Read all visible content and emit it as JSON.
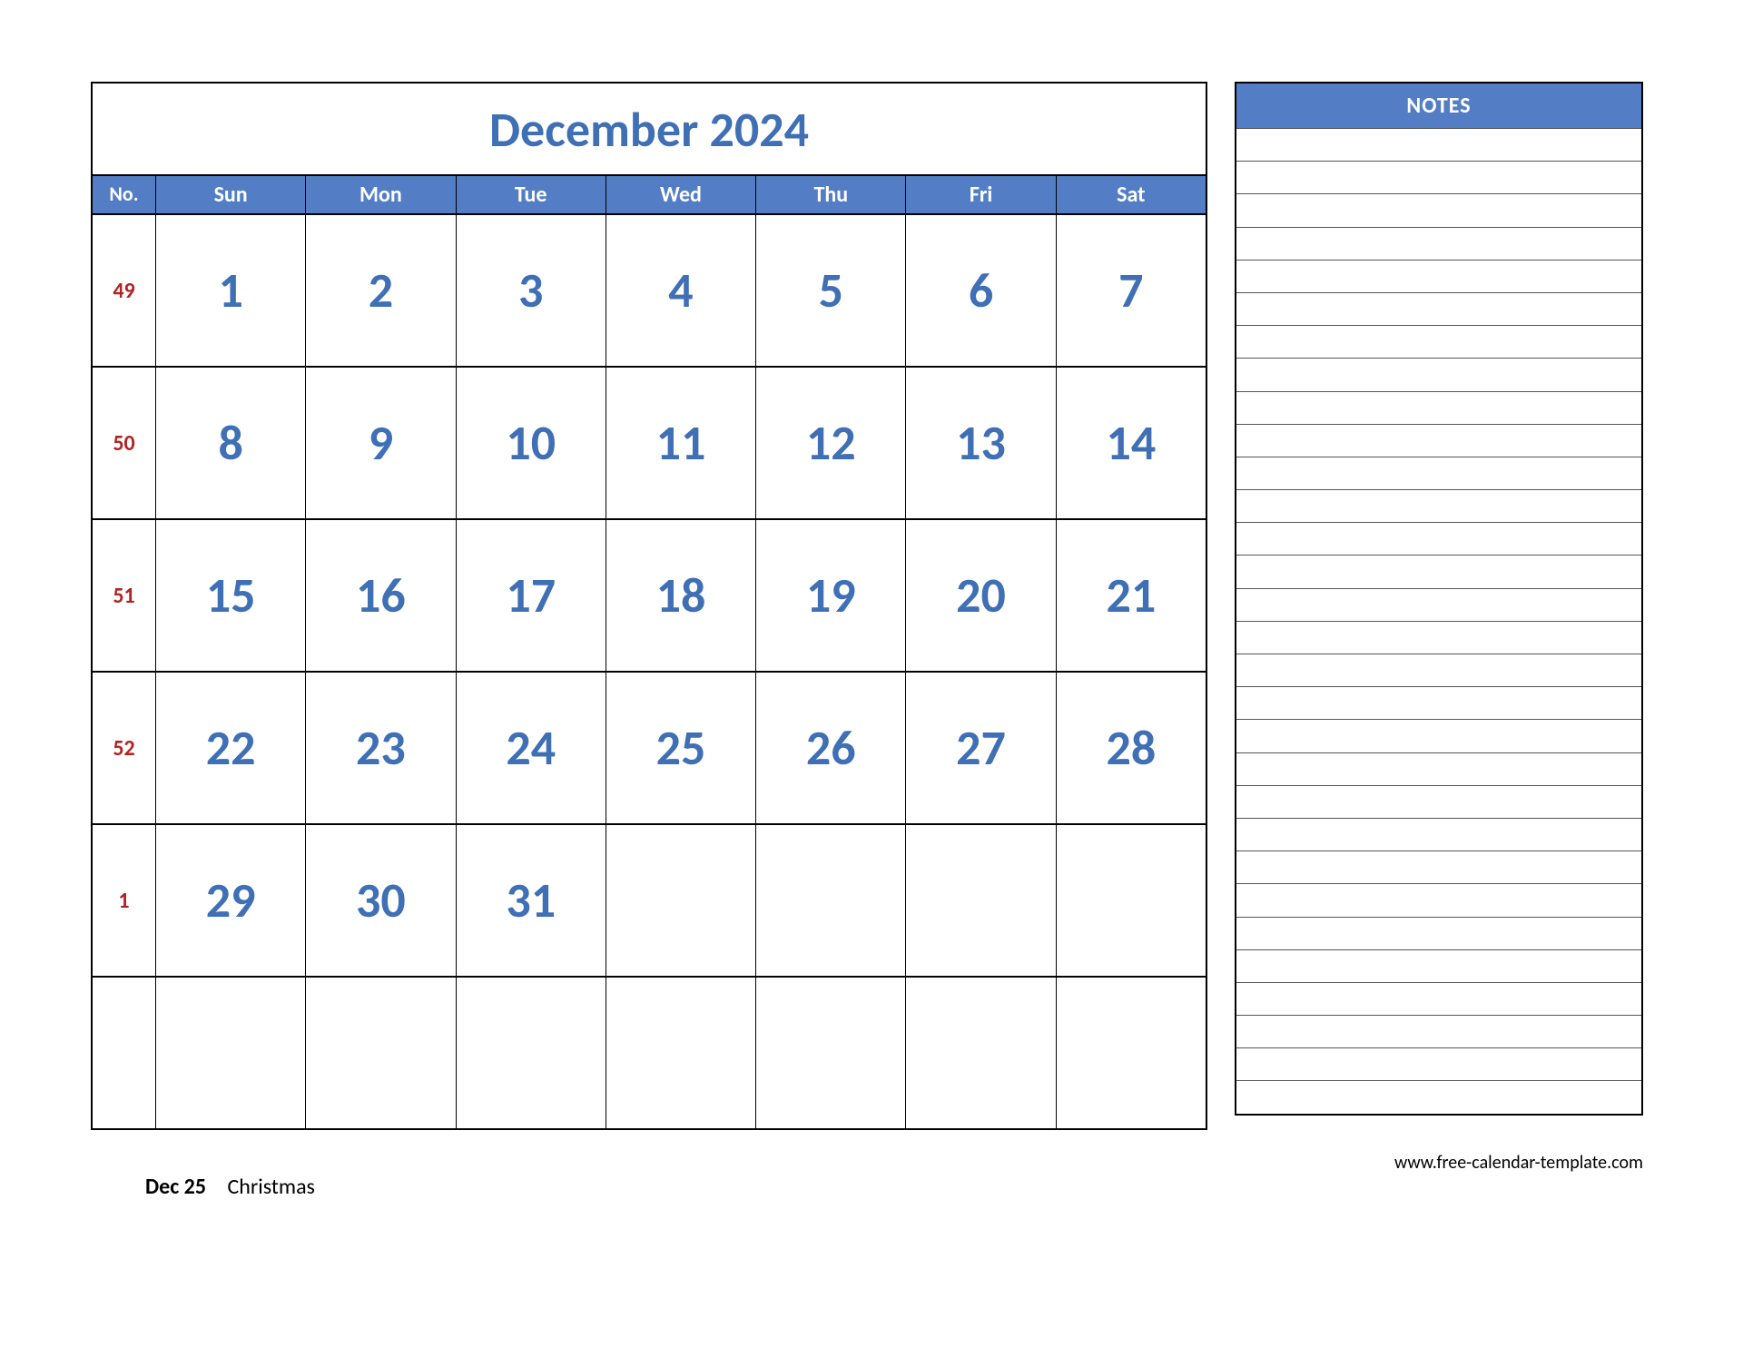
{
  "colors": {
    "accent": "#3f6fb5",
    "header_bg": "#537ec5",
    "week_no": "#b22222",
    "day_number": "#3f6fb5"
  },
  "calendar": {
    "title": "December 2024",
    "no_label": "No.",
    "day_labels": [
      "Sun",
      "Mon",
      "Tue",
      "Wed",
      "Thu",
      "Fri",
      "Sat"
    ],
    "weeks": [
      {
        "no": "49",
        "days": [
          "1",
          "2",
          "3",
          "4",
          "5",
          "6",
          "7"
        ]
      },
      {
        "no": "50",
        "days": [
          "8",
          "9",
          "10",
          "11",
          "12",
          "13",
          "14"
        ]
      },
      {
        "no": "51",
        "days": [
          "15",
          "16",
          "17",
          "18",
          "19",
          "20",
          "21"
        ]
      },
      {
        "no": "52",
        "days": [
          "22",
          "23",
          "24",
          "25",
          "26",
          "27",
          "28"
        ]
      },
      {
        "no": "1",
        "days": [
          "29",
          "30",
          "31",
          "",
          "",
          "",
          ""
        ]
      },
      {
        "no": "",
        "days": [
          "",
          "",
          "",
          "",
          "",
          "",
          ""
        ]
      }
    ]
  },
  "notes": {
    "header": "NOTES",
    "line_count": 30
  },
  "holiday": {
    "date": "Dec 25",
    "name": "Christmas"
  },
  "credit": "www.free-calendar-template.com"
}
